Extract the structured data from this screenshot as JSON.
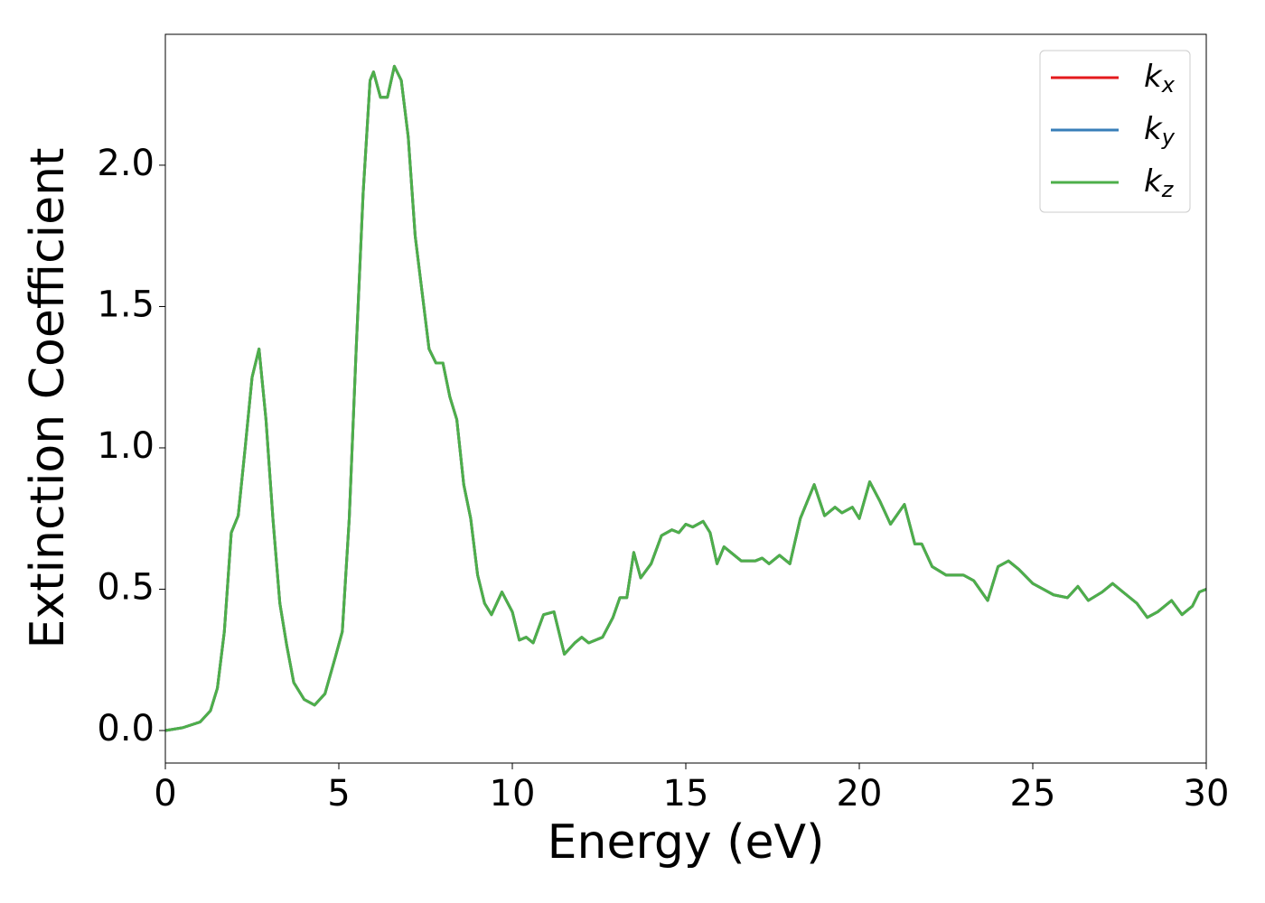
{
  "chart_data": {
    "type": "line",
    "xlabel": "Energy (eV)",
    "ylabel": "Extinction Coefficient",
    "xlim": [
      0,
      30
    ],
    "ylim": [
      -0.115,
      2.463
    ],
    "xticks": [
      0,
      5,
      10,
      15,
      20,
      25,
      30
    ],
    "yticks": [
      {
        "value": 0,
        "label": "0.0"
      },
      {
        "value": 0.5,
        "label": "0.5"
      },
      {
        "value": 1,
        "label": "1.0"
      },
      {
        "value": 1.5,
        "label": "1.5"
      },
      {
        "value": 2,
        "label": "2.0"
      }
    ],
    "legend": "upper right",
    "x": [
      0,
      0.5,
      1.0,
      1.3,
      1.5,
      1.7,
      1.9,
      2.1,
      2.3,
      2.5,
      2.7,
      2.9,
      3.1,
      3.3,
      3.5,
      3.7,
      4.0,
      4.3,
      4.6,
      4.9,
      5.1,
      5.3,
      5.5,
      5.7,
      5.9,
      6.0,
      6.2,
      6.4,
      6.6,
      6.8,
      7.0,
      7.2,
      7.4,
      7.6,
      7.8,
      8.0,
      8.2,
      8.4,
      8.6,
      8.8,
      9.0,
      9.2,
      9.4,
      9.7,
      10.0,
      10.2,
      10.4,
      10.6,
      10.9,
      11.2,
      11.5,
      11.8,
      12.0,
      12.2,
      12.6,
      12.9,
      13.1,
      13.3,
      13.5,
      13.7,
      14.0,
      14.3,
      14.6,
      14.8,
      15.0,
      15.2,
      15.5,
      15.7,
      15.9,
      16.1,
      16.3,
      16.6,
      17.0,
      17.2,
      17.4,
      17.7,
      18.0,
      18.3,
      18.7,
      19.0,
      19.3,
      19.5,
      19.8,
      20.0,
      20.3,
      20.6,
      20.9,
      21.3,
      21.6,
      21.8,
      22.1,
      22.5,
      23.0,
      23.3,
      23.7,
      24.0,
      24.3,
      24.6,
      25.0,
      25.3,
      25.6,
      26.0,
      26.3,
      26.6,
      27.0,
      27.3,
      27.6,
      28.0,
      28.3,
      28.6,
      29.0,
      29.3,
      29.6,
      29.8,
      30.0
    ],
    "series": [
      {
        "name": "kx",
        "color": "#e41a1c",
        "values": [
          0.0,
          0.01,
          0.03,
          0.07,
          0.15,
          0.35,
          0.7,
          0.76,
          1.0,
          1.25,
          1.35,
          1.1,
          0.75,
          0.45,
          0.3,
          0.17,
          0.11,
          0.09,
          0.13,
          0.26,
          0.35,
          0.75,
          1.35,
          1.9,
          2.3,
          2.33,
          2.24,
          2.24,
          2.35,
          2.3,
          2.1,
          1.75,
          1.55,
          1.35,
          1.3,
          1.3,
          1.18,
          1.1,
          0.87,
          0.75,
          0.55,
          0.45,
          0.41,
          0.49,
          0.42,
          0.32,
          0.33,
          0.31,
          0.41,
          0.42,
          0.27,
          0.31,
          0.33,
          0.31,
          0.33,
          0.4,
          0.47,
          0.47,
          0.63,
          0.54,
          0.59,
          0.69,
          0.71,
          0.7,
          0.73,
          0.72,
          0.74,
          0.7,
          0.59,
          0.65,
          0.63,
          0.6,
          0.6,
          0.61,
          0.59,
          0.62,
          0.59,
          0.75,
          0.87,
          0.76,
          0.79,
          0.77,
          0.79,
          0.75,
          0.88,
          0.81,
          0.73,
          0.8,
          0.66,
          0.66,
          0.58,
          0.55,
          0.55,
          0.53,
          0.46,
          0.58,
          0.6,
          0.57,
          0.52,
          0.5,
          0.48,
          0.47,
          0.51,
          0.46,
          0.49,
          0.52,
          0.49,
          0.45,
          0.4,
          0.42,
          0.46,
          0.41,
          0.44,
          0.49,
          0.5
        ]
      },
      {
        "name": "ky",
        "color": "#377eb8",
        "values": [
          0.0,
          0.01,
          0.03,
          0.07,
          0.15,
          0.35,
          0.7,
          0.76,
          1.0,
          1.25,
          1.35,
          1.1,
          0.75,
          0.45,
          0.3,
          0.17,
          0.11,
          0.09,
          0.13,
          0.26,
          0.35,
          0.75,
          1.35,
          1.9,
          2.3,
          2.33,
          2.24,
          2.24,
          2.35,
          2.3,
          2.1,
          1.75,
          1.55,
          1.35,
          1.3,
          1.3,
          1.18,
          1.1,
          0.87,
          0.75,
          0.55,
          0.45,
          0.41,
          0.49,
          0.42,
          0.32,
          0.33,
          0.31,
          0.41,
          0.42,
          0.27,
          0.31,
          0.33,
          0.31,
          0.33,
          0.4,
          0.47,
          0.47,
          0.63,
          0.54,
          0.59,
          0.69,
          0.71,
          0.7,
          0.73,
          0.72,
          0.74,
          0.7,
          0.59,
          0.65,
          0.63,
          0.6,
          0.6,
          0.61,
          0.59,
          0.62,
          0.59,
          0.75,
          0.87,
          0.76,
          0.79,
          0.77,
          0.79,
          0.75,
          0.88,
          0.81,
          0.73,
          0.8,
          0.66,
          0.66,
          0.58,
          0.55,
          0.55,
          0.53,
          0.46,
          0.58,
          0.6,
          0.57,
          0.52,
          0.5,
          0.48,
          0.47,
          0.51,
          0.46,
          0.49,
          0.52,
          0.49,
          0.45,
          0.4,
          0.42,
          0.46,
          0.41,
          0.44,
          0.49,
          0.5
        ]
      },
      {
        "name": "kz",
        "color": "#4daf4a",
        "values": [
          0.0,
          0.01,
          0.03,
          0.07,
          0.15,
          0.35,
          0.7,
          0.76,
          1.0,
          1.25,
          1.35,
          1.1,
          0.75,
          0.45,
          0.3,
          0.17,
          0.11,
          0.09,
          0.13,
          0.26,
          0.35,
          0.75,
          1.35,
          1.9,
          2.3,
          2.33,
          2.24,
          2.24,
          2.35,
          2.3,
          2.1,
          1.75,
          1.55,
          1.35,
          1.3,
          1.3,
          1.18,
          1.1,
          0.87,
          0.75,
          0.55,
          0.45,
          0.41,
          0.49,
          0.42,
          0.32,
          0.33,
          0.31,
          0.41,
          0.42,
          0.27,
          0.31,
          0.33,
          0.31,
          0.33,
          0.4,
          0.47,
          0.47,
          0.63,
          0.54,
          0.59,
          0.69,
          0.71,
          0.7,
          0.73,
          0.72,
          0.74,
          0.7,
          0.59,
          0.65,
          0.63,
          0.6,
          0.6,
          0.61,
          0.59,
          0.62,
          0.59,
          0.75,
          0.87,
          0.76,
          0.79,
          0.77,
          0.79,
          0.75,
          0.88,
          0.81,
          0.73,
          0.8,
          0.66,
          0.66,
          0.58,
          0.55,
          0.55,
          0.53,
          0.46,
          0.58,
          0.6,
          0.57,
          0.52,
          0.5,
          0.48,
          0.47,
          0.51,
          0.46,
          0.49,
          0.52,
          0.49,
          0.45,
          0.4,
          0.42,
          0.46,
          0.41,
          0.44,
          0.49,
          0.5
        ]
      }
    ]
  }
}
